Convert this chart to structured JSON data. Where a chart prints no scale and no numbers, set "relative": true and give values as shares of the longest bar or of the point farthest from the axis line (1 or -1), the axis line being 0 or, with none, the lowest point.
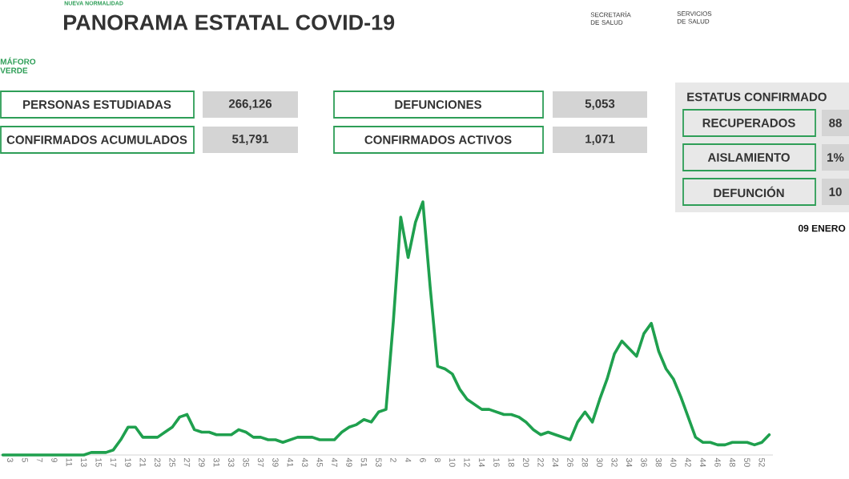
{
  "chart_data": {
    "type": "line",
    "relative": true,
    "title": "PANORAMA ESTATAL COVID-19",
    "color": "#1fa04e",
    "categories": [
      null,
      "3",
      null,
      "5",
      null,
      "7",
      null,
      "9",
      null,
      "11",
      null,
      "13",
      null,
      "15",
      null,
      "17",
      null,
      "19",
      null,
      "21",
      null,
      "23",
      null,
      "25",
      null,
      "27",
      null,
      "29",
      null,
      "31",
      null,
      "33",
      null,
      "35",
      null,
      "37",
      null,
      "39",
      null,
      "41",
      null,
      "43",
      null,
      "45",
      null,
      "47",
      null,
      "49",
      null,
      "51",
      null,
      "53",
      null,
      "2",
      null,
      "4",
      null,
      "6",
      null,
      "8",
      null,
      "10",
      null,
      "12",
      null,
      "14",
      null,
      "16",
      null,
      "18",
      null,
      "20",
      null,
      "22",
      null,
      "24",
      null,
      "26",
      null,
      "28",
      null,
      "30",
      null,
      "32",
      null,
      "34",
      null,
      "36",
      null,
      "38",
      null,
      "40",
      null,
      "42",
      null,
      "44",
      null,
      "46",
      null,
      "48",
      null,
      "50",
      null,
      "52",
      null
    ],
    "values": [
      0,
      0,
      0,
      0,
      0,
      0,
      0,
      0,
      0,
      0,
      0,
      0,
      0.01,
      0.01,
      0.01,
      0.02,
      0.06,
      0.11,
      0.11,
      0.07,
      0.07,
      0.07,
      0.09,
      0.11,
      0.15,
      0.16,
      0.1,
      0.09,
      0.09,
      0.08,
      0.08,
      0.08,
      0.1,
      0.09,
      0.07,
      0.07,
      0.06,
      0.06,
      0.05,
      0.06,
      0.07,
      0.07,
      0.07,
      0.06,
      0.06,
      0.06,
      0.09,
      0.11,
      0.12,
      0.14,
      0.13,
      0.17,
      0.18,
      0.53,
      0.94,
      0.78,
      0.92,
      1,
      0.66,
      0.35,
      0.34,
      0.32,
      0.26,
      0.22,
      0.2,
      0.18,
      0.18,
      0.17,
      0.16,
      0.16,
      0.15,
      0.13,
      0.1,
      0.08,
      0.09,
      0.08,
      0.07,
      0.06,
      0.13,
      0.17,
      0.13,
      0.22,
      0.3,
      0.4,
      0.45,
      0.42,
      0.39,
      0.48,
      0.52,
      0.41,
      0.34,
      0.3,
      0.23,
      0.15,
      0.07,
      0.05,
      0.05,
      0.04,
      0.04,
      0.05,
      0.05,
      0.05,
      0.04,
      0.05,
      0.08
    ],
    "annotations": [
      "NUEVA NORMALIDAD",
      "MÁFORO",
      "VERDE",
      "SECRETARÍA DE SALUD",
      "SERVICIOS DE SALUD",
      "PERSONAS ESTUDIADAS",
      "266,126",
      "CONFIRMADOS ACUMULADOS",
      "51,791",
      "DEFUNCIONES",
      "5,053",
      "CONFIRMADOS ACTIVOS",
      "1,071",
      "ESTATUS CONFIRMADO",
      "RECUPERADOS",
      "88",
      "AISLAMIENTO",
      "1%",
      "DEFUNCIÓN",
      "10",
      "09 ENERO"
    ]
  }
}
